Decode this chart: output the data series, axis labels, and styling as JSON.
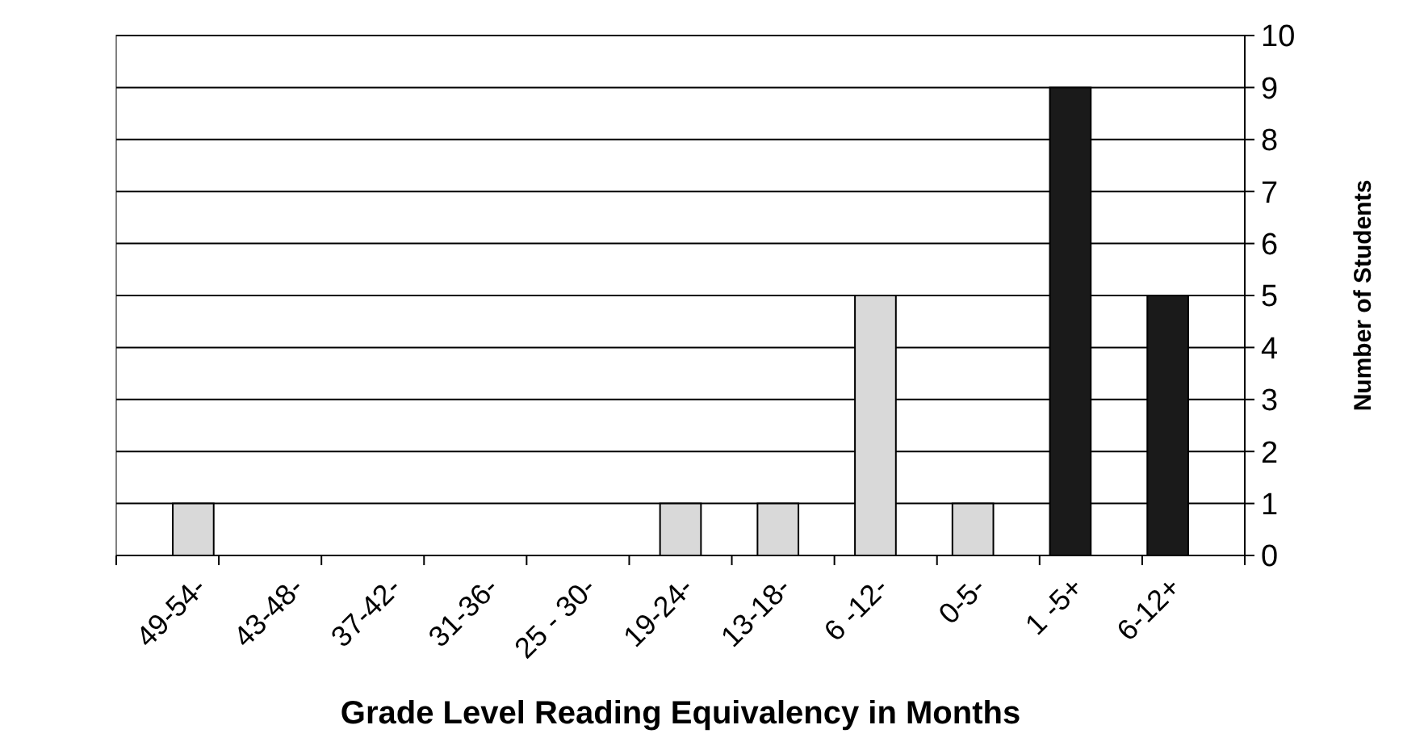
{
  "chart_data": {
    "type": "bar",
    "xlabel": "Grade Level Reading Equivalency in Months",
    "ylabel": "Number of Students",
    "categories": [
      "49-54-",
      "43-48-",
      "37-42-",
      "31-36-",
      "25 - 30-",
      "19-24-",
      "13-18-",
      "6 -12-",
      "0-5-",
      "1 -5+",
      "6-12+"
    ],
    "values": [
      1,
      0,
      0,
      0,
      0,
      1,
      1,
      5,
      1,
      9,
      5
    ],
    "colors": [
      "#d9d9d9",
      "#d9d9d9",
      "#d9d9d9",
      "#d9d9d9",
      "#d9d9d9",
      "#d9d9d9",
      "#d9d9d9",
      "#d9d9d9",
      "#d9d9d9",
      "#1a1a1a",
      "#1a1a1a"
    ],
    "ylim": [
      0,
      10
    ],
    "yticks": [
      0,
      1,
      2,
      3,
      4,
      5,
      6,
      7,
      8,
      9,
      10
    ],
    "grid": "y"
  }
}
